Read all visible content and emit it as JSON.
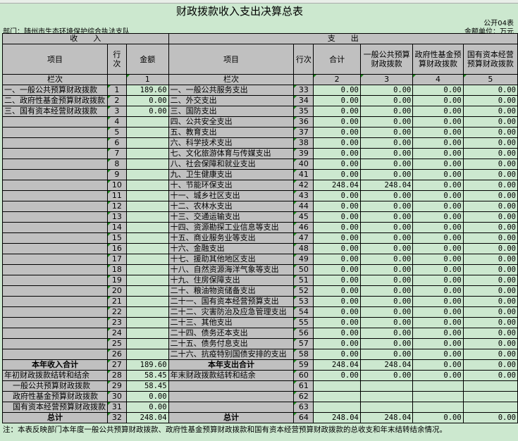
{
  "title": "财政拨款收入支出决算总表",
  "form_no": "公开04表",
  "department": "部门：随州市生态环境保护综合执法支队",
  "unit": "金额单位：万元",
  "headers": {
    "income": "收　　入",
    "expense": "支　　出",
    "item": "项目",
    "line_no": "行次",
    "amount": "金额",
    "total": "合计",
    "general": "一般公共预算财政拨款",
    "gov_fund": "政府性基金预算财政拨款",
    "state_capital": "国有资本经营预算财政拨款",
    "col_label": "栏次",
    "col1": "1",
    "col2": "2",
    "col3": "3",
    "col4": "4",
    "col5": "5"
  },
  "rows": [
    {
      "in_item": "一、一般公共预算财政拨款",
      "in_no": "1",
      "in_amt": "189.60",
      "ex_item": "一、一般公共服务支出",
      "ex_no": "33",
      "v": [
        "0.00",
        "0.00",
        "0.00",
        "0.00"
      ]
    },
    {
      "in_item": "二、政府性基金预算财政拨款",
      "in_no": "2",
      "in_amt": "0.00",
      "ex_item": "二、外交支出",
      "ex_no": "34",
      "v": [
        "0.00",
        "0.00",
        "0.00",
        "0.00"
      ]
    },
    {
      "in_item": "三、国有资本经营财政拨款",
      "in_no": "3",
      "in_amt": "0.00",
      "ex_item": "三、国防支出",
      "ex_no": "35",
      "v": [
        "0.00",
        "0.00",
        "0.00",
        "0.00"
      ]
    },
    {
      "in_item": "",
      "in_no": "4",
      "in_amt": "",
      "ex_item": "四、公共安全支出",
      "ex_no": "36",
      "v": [
        "0.00",
        "0.00",
        "0.00",
        "0.00"
      ]
    },
    {
      "in_item": "",
      "in_no": "5",
      "in_amt": "",
      "ex_item": "五、教育支出",
      "ex_no": "37",
      "v": [
        "0.00",
        "0.00",
        "0.00",
        "0.00"
      ]
    },
    {
      "in_item": "",
      "in_no": "6",
      "in_amt": "",
      "ex_item": "六、科学技术支出",
      "ex_no": "38",
      "v": [
        "0.00",
        "0.00",
        "0.00",
        "0.00"
      ]
    },
    {
      "in_item": "",
      "in_no": "7",
      "in_amt": "",
      "ex_item": "七、文化旅游体育与传媒支出",
      "ex_no": "39",
      "v": [
        "0.00",
        "0.00",
        "0.00",
        "0.00"
      ]
    },
    {
      "in_item": "",
      "in_no": "8",
      "in_amt": "",
      "ex_item": "八、社会保障和就业支出",
      "ex_no": "40",
      "v": [
        "0.00",
        "0.00",
        "0.00",
        "0.00"
      ]
    },
    {
      "in_item": "",
      "in_no": "9",
      "in_amt": "",
      "ex_item": "九、卫生健康支出",
      "ex_no": "41",
      "v": [
        "0.00",
        "0.00",
        "0.00",
        "0.00"
      ]
    },
    {
      "in_item": "",
      "in_no": "10",
      "in_amt": "",
      "ex_item": "十、节能环保支出",
      "ex_no": "42",
      "v": [
        "248.04",
        "248.04",
        "0.00",
        "0.00"
      ]
    },
    {
      "in_item": "",
      "in_no": "11",
      "in_amt": "",
      "ex_item": "十一、城乡社区支出",
      "ex_no": "43",
      "v": [
        "0.00",
        "0.00",
        "0.00",
        "0.00"
      ]
    },
    {
      "in_item": "",
      "in_no": "12",
      "in_amt": "",
      "ex_item": "十二、农林水支出",
      "ex_no": "44",
      "v": [
        "0.00",
        "0.00",
        "0.00",
        "0.00"
      ]
    },
    {
      "in_item": "",
      "in_no": "13",
      "in_amt": "",
      "ex_item": "十三、交通运输支出",
      "ex_no": "45",
      "v": [
        "0.00",
        "0.00",
        "0.00",
        "0.00"
      ]
    },
    {
      "in_item": "",
      "in_no": "14",
      "in_amt": "",
      "ex_item": "十四、资源勘探工业信息等支出",
      "ex_no": "46",
      "v": [
        "0.00",
        "0.00",
        "0.00",
        "0.00"
      ]
    },
    {
      "in_item": "",
      "in_no": "15",
      "in_amt": "",
      "ex_item": "十五、商业服务业等支出",
      "ex_no": "47",
      "v": [
        "0.00",
        "0.00",
        "0.00",
        "0.00"
      ]
    },
    {
      "in_item": "",
      "in_no": "16",
      "in_amt": "",
      "ex_item": "十六、金融支出",
      "ex_no": "48",
      "v": [
        "0.00",
        "0.00",
        "0.00",
        "0.00"
      ]
    },
    {
      "in_item": "",
      "in_no": "17",
      "in_amt": "",
      "ex_item": "十七、援助其他地区支出",
      "ex_no": "49",
      "v": [
        "0.00",
        "0.00",
        "0.00",
        "0.00"
      ]
    },
    {
      "in_item": "",
      "in_no": "18",
      "in_amt": "",
      "ex_item": "十八、自然资源海洋气象等支出",
      "ex_no": "50",
      "v": [
        "0.00",
        "0.00",
        "0.00",
        "0.00"
      ]
    },
    {
      "in_item": "",
      "in_no": "19",
      "in_amt": "",
      "ex_item": "十九、住房保障支出",
      "ex_no": "51",
      "v": [
        "0.00",
        "0.00",
        "0.00",
        "0.00"
      ]
    },
    {
      "in_item": "",
      "in_no": "20",
      "in_amt": "",
      "ex_item": "二十、粮油物资储备支出",
      "ex_no": "52",
      "v": [
        "0.00",
        "0.00",
        "0.00",
        "0.00"
      ]
    },
    {
      "in_item": "",
      "in_no": "21",
      "in_amt": "",
      "ex_item": "二十一、国有资本经营预算支出",
      "ex_no": "53",
      "v": [
        "0.00",
        "0.00",
        "0.00",
        "0.00"
      ]
    },
    {
      "in_item": "",
      "in_no": "22",
      "in_amt": "",
      "ex_item": "二十二、灾害防治及应急管理支出",
      "ex_no": "54",
      "v": [
        "0.00",
        "0.00",
        "0.00",
        "0.00"
      ]
    },
    {
      "in_item": "",
      "in_no": "23",
      "in_amt": "",
      "ex_item": "二十三、其他支出",
      "ex_no": "55",
      "v": [
        "0.00",
        "0.00",
        "0.00",
        "0.00"
      ]
    },
    {
      "in_item": "",
      "in_no": "24",
      "in_amt": "",
      "ex_item": "二十四、债务还本支出",
      "ex_no": "56",
      "v": [
        "0.00",
        "0.00",
        "0.00",
        "0.00"
      ]
    },
    {
      "in_item": "",
      "in_no": "25",
      "in_amt": "",
      "ex_item": "二十五、债务付息支出",
      "ex_no": "57",
      "v": [
        "0.00",
        "0.00",
        "0.00",
        "0.00"
      ]
    },
    {
      "in_item": "",
      "in_no": "26",
      "in_amt": "",
      "ex_item": "二十六、抗疫特别国债安排的支出",
      "ex_no": "58",
      "v": [
        "0.00",
        "0.00",
        "0.00",
        "0.00"
      ]
    },
    {
      "in_item": "本年收入合计",
      "in_no": "27",
      "in_amt": "189.60",
      "ex_item": "本年支出合计",
      "ex_no": "59",
      "v": [
        "248.04",
        "248.04",
        "0.00",
        "0.00"
      ],
      "bold": true
    },
    {
      "in_item": "年初财政拨款结转和结余",
      "in_no": "28",
      "in_amt": "58.45",
      "ex_item": "年末财政拨款结转和结余",
      "ex_no": "60",
      "v": [
        "0.00",
        "0.00",
        "0.00",
        "0.00"
      ]
    },
    {
      "in_item": "一般公共预算财政拨款",
      "in_no": "29",
      "in_amt": "58.45",
      "ex_item": "",
      "ex_no": "61",
      "v": [
        "",
        "",
        "",
        ""
      ],
      "indent": true
    },
    {
      "in_item": "政府性基金预算财政拨款",
      "in_no": "30",
      "in_amt": "0.00",
      "ex_item": "",
      "ex_no": "62",
      "v": [
        "",
        "",
        "",
        ""
      ],
      "indent": true
    },
    {
      "in_item": "国有资本经营预算财政拨款",
      "in_no": "31",
      "in_amt": "0.00",
      "ex_item": "",
      "ex_no": "63",
      "v": [
        "",
        "",
        "",
        ""
      ],
      "indent": true
    },
    {
      "in_item": "总计",
      "in_no": "32",
      "in_amt": "248.04",
      "ex_item": "总计",
      "ex_no": "64",
      "v": [
        "248.04",
        "248.04",
        "0.00",
        "0.00"
      ],
      "bold": true
    }
  ],
  "note": "注：本表反映部门本年度一般公共预算财政拨款、政府性基金预算财政拨款和国有资本经营预算财政拨款的总收支和年末结转结余情况。",
  "colors": {
    "sheet_bg": "#cce8cf",
    "header_bg": "#c0c0c0"
  }
}
